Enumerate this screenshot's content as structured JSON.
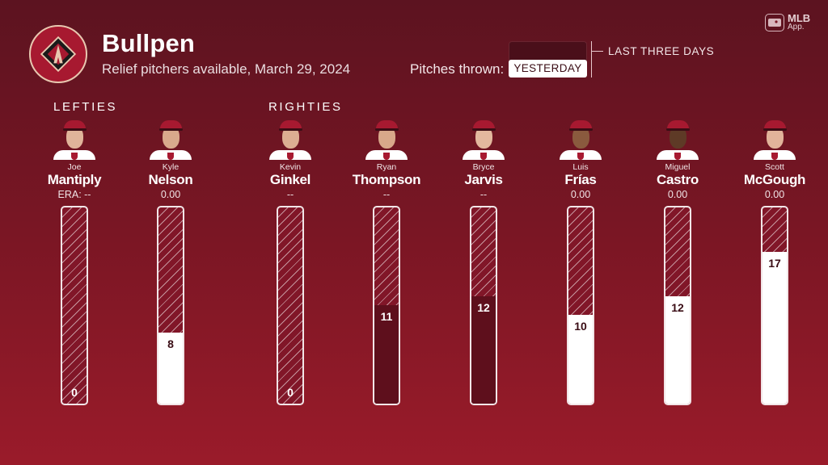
{
  "header": {
    "title": "Bullpen",
    "subtitle": "Relief pitchers available, March 29, 2024",
    "team_logo_icon": "diamondbacks-a-logo"
  },
  "legend": {
    "label": "Pitches thrown:",
    "yesterday": "YESTERDAY",
    "last_three_days": "LAST THREE DAYS"
  },
  "brand": {
    "name": "MLB",
    "sub": "App."
  },
  "groups": {
    "lefties": "LEFTIES",
    "righties": "RIGHTIES"
  },
  "colors": {
    "accent": "#a71930",
    "bar_dark": "#5e0f1c",
    "bar_white": "#ffffff"
  },
  "scale_max": 22,
  "pitchers": [
    {
      "first": "Joe",
      "last": "Mantiply",
      "era": "ERA: --",
      "pitches": 0,
      "fill": "white",
      "skin": "#e0b49a"
    },
    {
      "first": "Kyle",
      "last": "Nelson",
      "era": "0.00",
      "pitches": 8,
      "fill": "white",
      "skin": "#d9a98c"
    },
    {
      "first": "Kevin",
      "last": "Ginkel",
      "era": "--",
      "pitches": 0,
      "fill": "dark",
      "skin": "#dcae92"
    },
    {
      "first": "Ryan",
      "last": "Thompson",
      "era": "--",
      "pitches": 11,
      "fill": "dark",
      "skin": "#d8a88a"
    },
    {
      "first": "Bryce",
      "last": "Jarvis",
      "era": "--",
      "pitches": 12,
      "fill": "dark",
      "skin": "#e3b89e"
    },
    {
      "first": "Luis",
      "last": "Frías",
      "era": "0.00",
      "pitches": 10,
      "fill": "white",
      "skin": "#8a5a3e"
    },
    {
      "first": "Miguel",
      "last": "Castro",
      "era": "0.00",
      "pitches": 12,
      "fill": "white",
      "skin": "#5e3a26"
    },
    {
      "first": "Scott",
      "last": "McGough",
      "era": "0.00",
      "pitches": 17,
      "fill": "white",
      "skin": "#e1b39a"
    }
  ]
}
